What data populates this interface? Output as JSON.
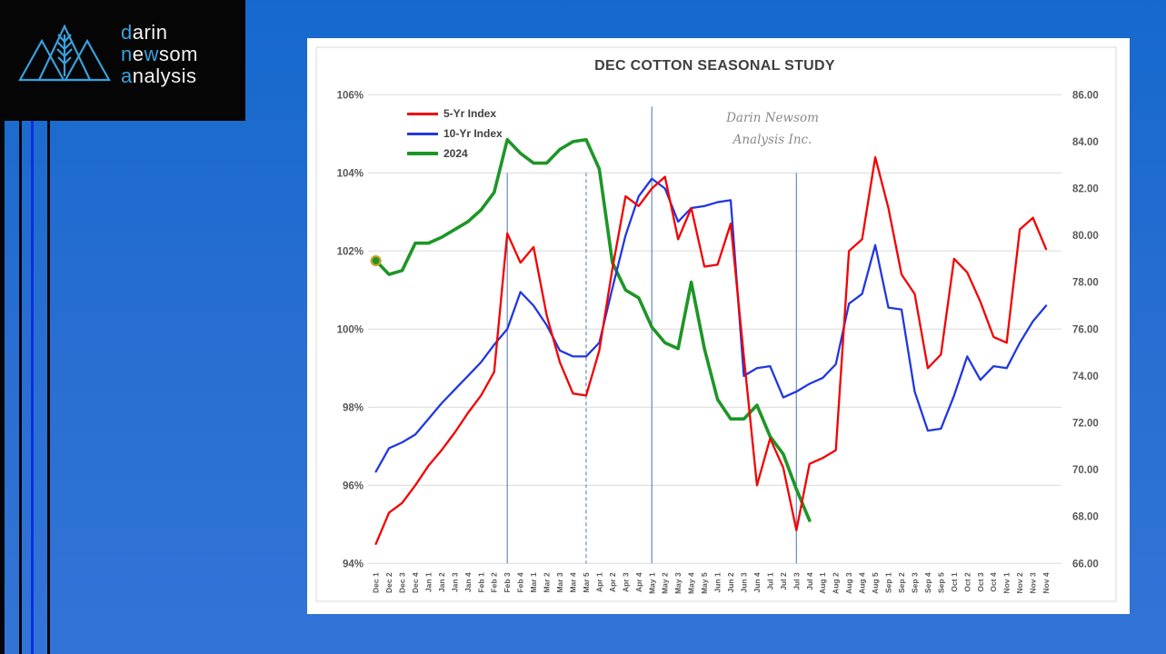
{
  "brand": {
    "accent_color": "#3aa0dc",
    "darin_hl": "d",
    "darin_rest": "arin",
    "newsom_n": "n",
    "newsom_e": "e",
    "newsom_w": "w",
    "newsom_rest": "som",
    "analysis_hl": "a",
    "analysis_rest": "nalysis"
  },
  "chart_data": {
    "type": "line",
    "title": "DEC COTTON SEASONAL STUDY",
    "watermark": [
      "Darin Newsom",
      "Analysis Inc."
    ],
    "legend_position": "top-left-inside",
    "grid": "horizontal",
    "x_labels": [
      "Dec 1",
      "Dec 2",
      "Dec 3",
      "Dec 4",
      "Jan 1",
      "Jan 2",
      "Jan 3",
      "Jan 4",
      "Feb 1",
      "Feb 2",
      "Feb 3",
      "Feb 4",
      "Mar 1",
      "Mar 2",
      "Mar 3",
      "Mar 4",
      "Mar 5",
      "Apr 1",
      "Apr 2",
      "Apr 3",
      "Apr 4",
      "May 1",
      "May 2",
      "May 3",
      "May 4",
      "May 5",
      "Jun 1",
      "Jun 2",
      "Jun 3",
      "Jun 4",
      "Jul 1",
      "Jul 2",
      "Jul 3",
      "Jul 4",
      "Aug 1",
      "Aug 2",
      "Aug 3",
      "Aug 4",
      "Aug 5",
      "Sep 1",
      "Sep 2",
      "Sep 3",
      "Sep 4",
      "Sep 5",
      "Oct 1",
      "Oct 2",
      "Oct 3",
      "Oct 4",
      "Nov 1",
      "Nov 2",
      "Nov 3",
      "Nov 4"
    ],
    "left_axis": {
      "ticks": [
        "106%",
        "104%",
        "102%",
        "100%",
        "98%",
        "96%",
        "94%"
      ],
      "max": 106,
      "min": 94
    },
    "right_axis": {
      "ticks": [
        "86.00",
        "84.00",
        "82.00",
        "80.00",
        "78.00",
        "76.00",
        "74.00",
        "72.00",
        "70.00",
        "68.00",
        "66.00"
      ],
      "max": 86,
      "min": 66
    },
    "gridline_color": "#d9d9d9",
    "tick_color": "#595959",
    "marker_color": "#7495c0",
    "markers": [
      {
        "x_label": "Feb 3",
        "style": "solid",
        "top_pct": 104.0
      },
      {
        "x_label": "Mar 5",
        "style": "dashed",
        "top_pct": 104.0
      },
      {
        "x_label": "May 1",
        "style": "solid",
        "top_pct": 105.7
      },
      {
        "x_label": "Jul 3",
        "style": "solid",
        "top_pct": 104.0
      }
    ],
    "series": [
      {
        "name": "5-Yr Index",
        "color": "#f40000",
        "values": [
          94.5,
          95.3,
          95.55,
          96.0,
          96.5,
          96.9,
          97.35,
          97.85,
          98.3,
          98.9,
          102.45,
          101.7,
          102.1,
          100.35,
          99.15,
          98.35,
          98.3,
          99.45,
          101.55,
          103.4,
          103.15,
          103.6,
          103.9,
          102.3,
          103.1,
          101.6,
          101.65,
          102.7,
          99.3,
          96.0,
          97.2,
          96.45,
          94.85,
          96.55,
          96.7,
          96.9,
          102.0,
          102.3,
          104.4,
          103.1,
          101.4,
          100.9,
          99.0,
          99.35,
          101.8,
          101.45,
          100.7,
          99.8,
          99.65,
          102.55,
          102.85,
          102.05
        ]
      },
      {
        "name": "10-Yr Index",
        "color": "#2138e0",
        "values": [
          96.35,
          96.95,
          97.1,
          97.3,
          97.7,
          98.1,
          98.45,
          98.8,
          99.15,
          99.6,
          100.0,
          100.95,
          100.6,
          100.1,
          99.45,
          99.3,
          99.3,
          99.65,
          101.05,
          102.4,
          103.4,
          103.85,
          103.6,
          102.75,
          103.1,
          103.15,
          103.25,
          103.3,
          98.8,
          99.0,
          99.05,
          98.25,
          98.4,
          98.6,
          98.75,
          99.1,
          100.65,
          100.9,
          102.15,
          100.55,
          100.5,
          98.4,
          97.4,
          97.45,
          98.3,
          99.3,
          98.7,
          99.05,
          99.0,
          99.65,
          100.2,
          100.6
        ]
      },
      {
        "name": "2024",
        "color": "#1d9626",
        "values": [
          101.75,
          101.4,
          101.5,
          102.2,
          102.2,
          102.35,
          102.55,
          102.75,
          103.05,
          103.5,
          104.85,
          104.5,
          104.25,
          104.25,
          104.6,
          104.8,
          104.85,
          104.1,
          101.7,
          101.0,
          100.8,
          100.05,
          99.65,
          99.5,
          101.2,
          99.5,
          98.2,
          97.7,
          97.7,
          98.05,
          97.25,
          96.8,
          95.9,
          95.1,
          null,
          null,
          null,
          null,
          null,
          null,
          null,
          null,
          null,
          null,
          null,
          null,
          null,
          null,
          null,
          null,
          null,
          null
        ]
      }
    ],
    "start_marker": {
      "series_index": 2,
      "point_index": 0,
      "fill": "#1d9626",
      "ring": "#c9a227"
    }
  }
}
